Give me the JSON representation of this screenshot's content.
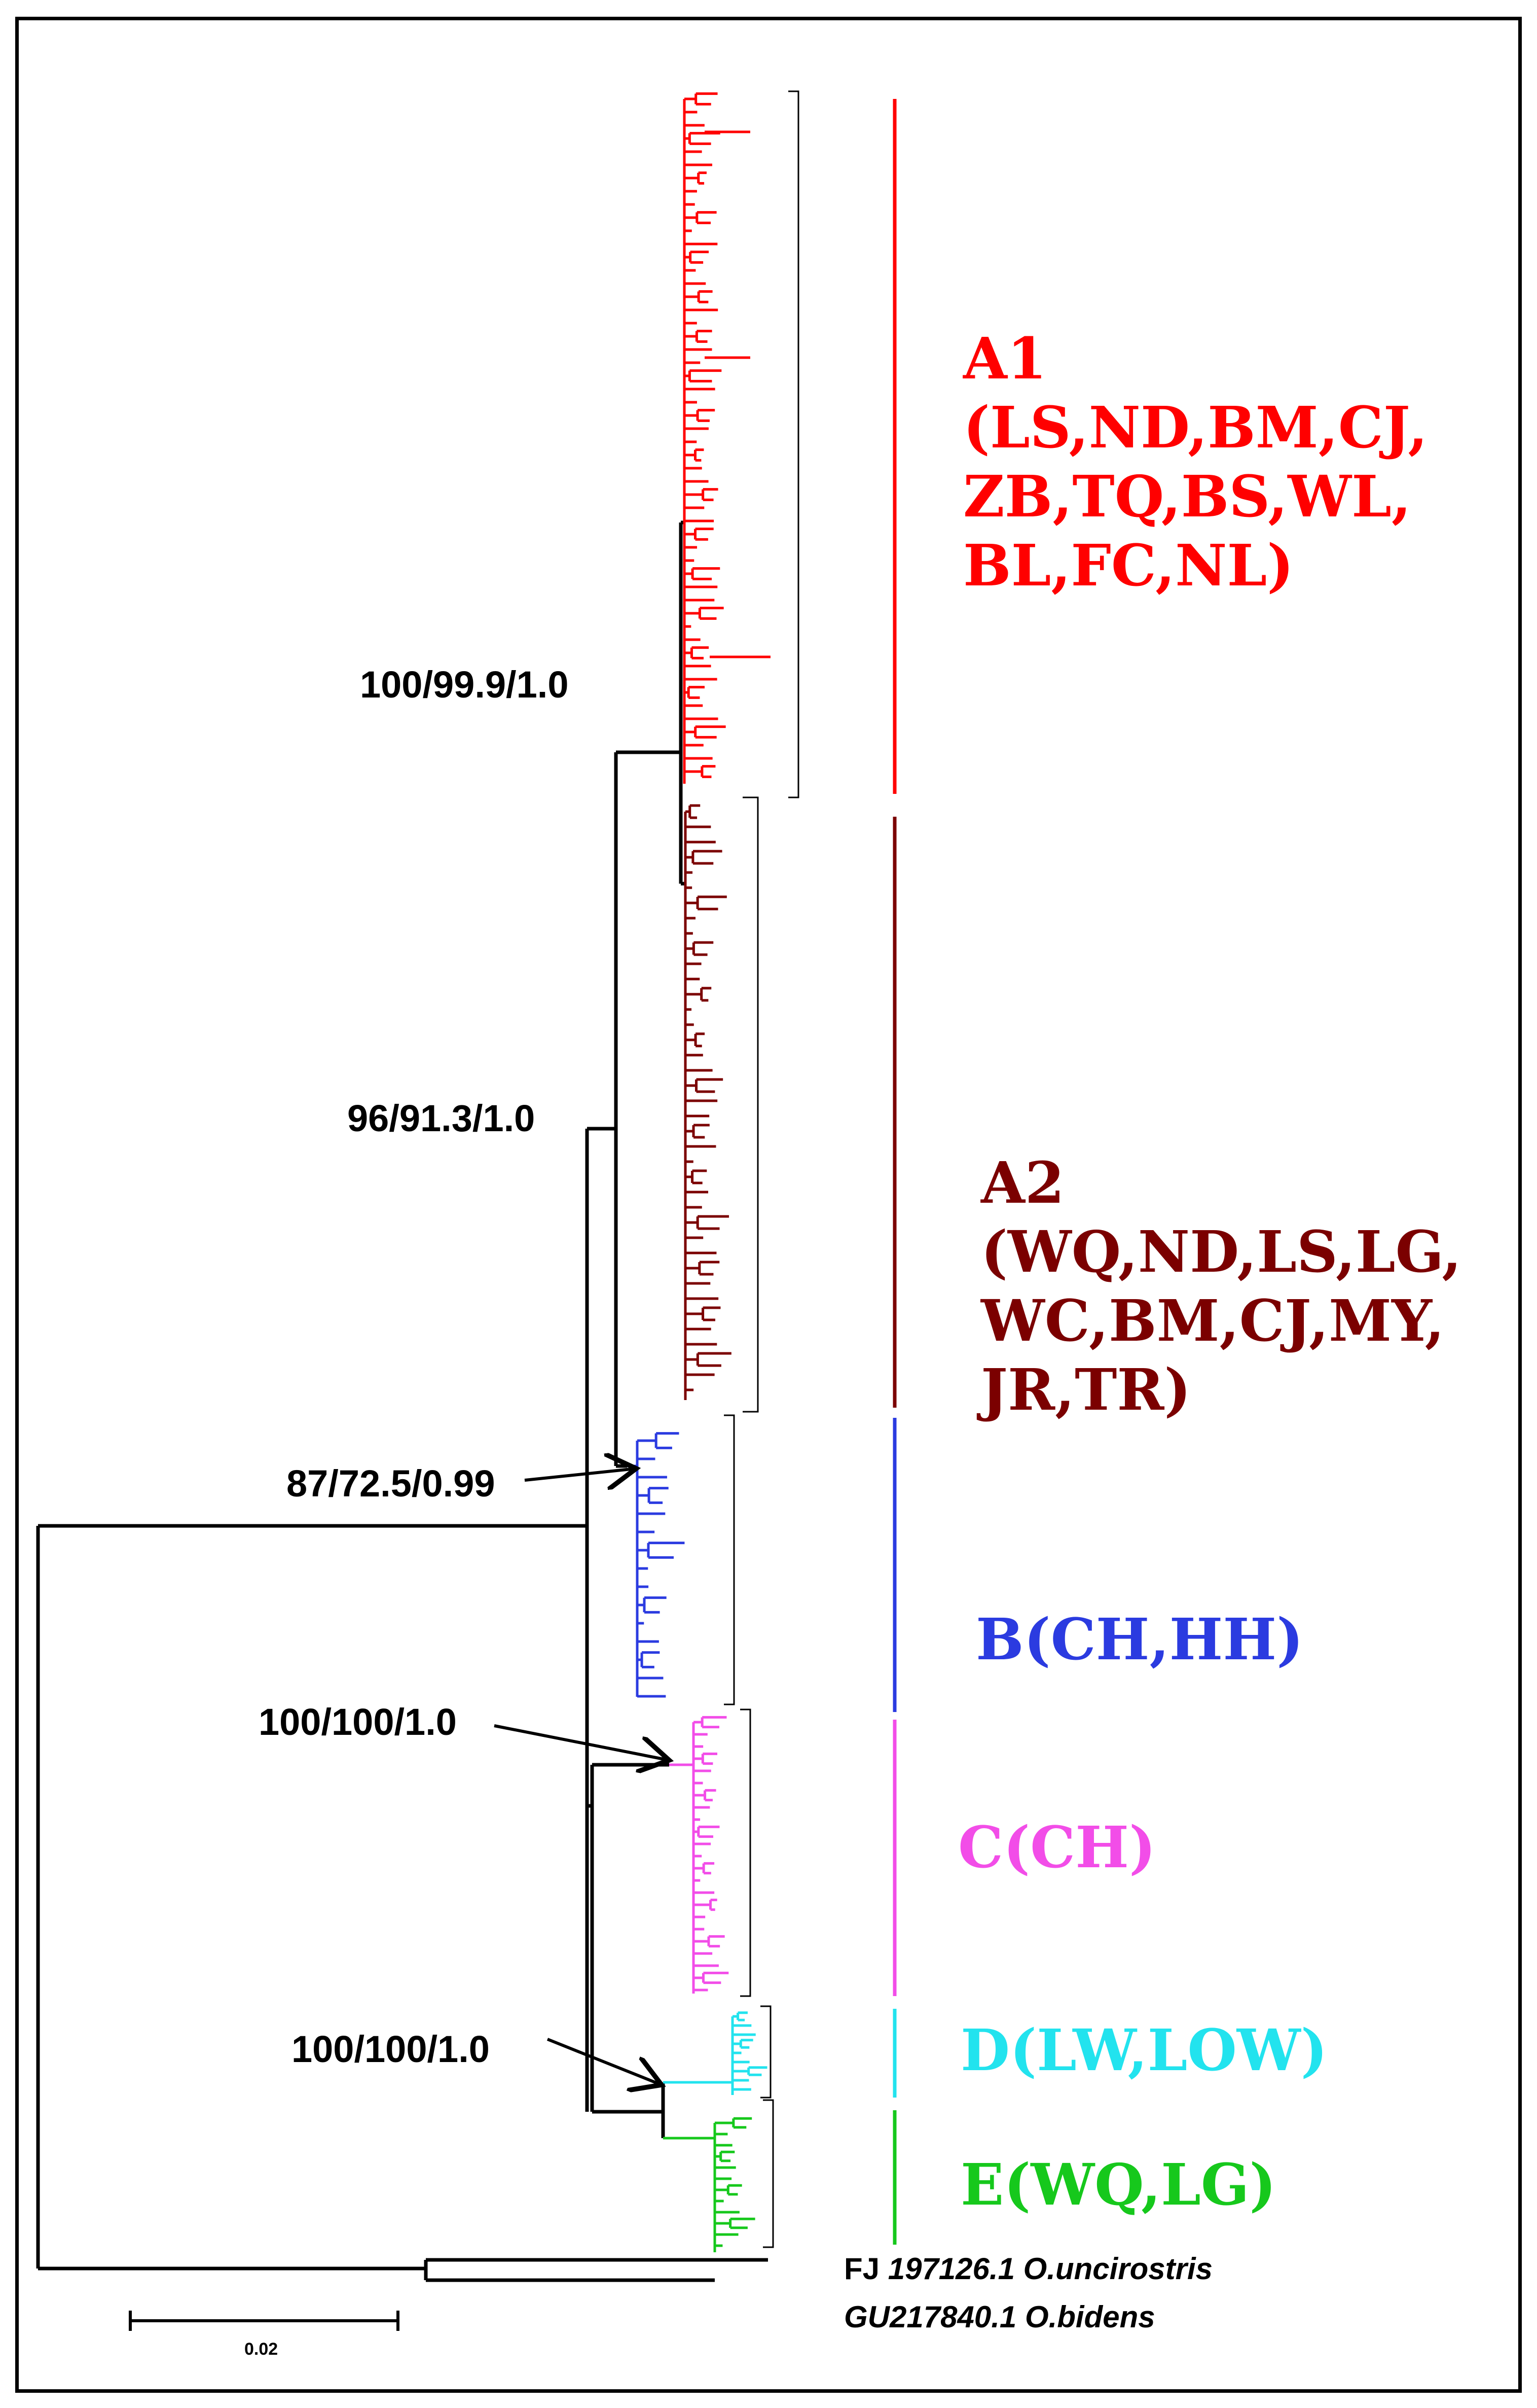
{
  "clades": [
    {
      "id": "A1",
      "name": "A1",
      "lines": [
        "(LS,ND,BM,CJ,",
        "ZB,TQ,BS,WL,",
        "BL,FC,NL)"
      ],
      "color": "#ff0000"
    },
    {
      "id": "A2",
      "name": "A2",
      "lines": [
        "(WQ,ND,LS,LG,",
        "WC,BM,CJ,MY,",
        "JR,TR)"
      ],
      "color": "#7b0000"
    },
    {
      "id": "B",
      "name": "B(CH,HH)",
      "lines": [],
      "color": "#2b3be0"
    },
    {
      "id": "C",
      "name": "C(CH)",
      "lines": [],
      "color": "#f24de8"
    },
    {
      "id": "D",
      "name": "D(LW,LOW)",
      "lines": [],
      "color": "#22e3ee"
    },
    {
      "id": "E",
      "name": "E(WQ,LG)",
      "lines": [],
      "color": "#16c81c"
    }
  ],
  "node_supports": {
    "a1": "100/99.9/1.0",
    "a": "96/91.3/1.0",
    "b": "87/72.5/0.99",
    "c": "100/100/1.0",
    "de": "100/100/1.0"
  },
  "outgroups": [
    {
      "accession": "FJ",
      "rest": "197126.1 O.uncirostris"
    },
    {
      "accession": "GU217840.1",
      "rest": "O.bidens"
    }
  ],
  "scale_bar": {
    "value": "0.02"
  }
}
